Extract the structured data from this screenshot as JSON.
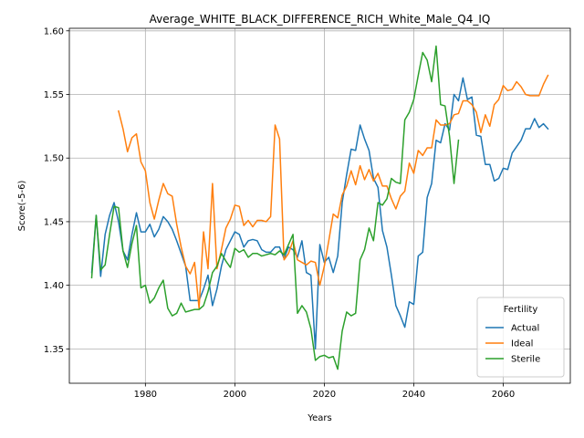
{
  "chart_data": {
    "type": "line",
    "title": "Average_WHITE_BLACK_DIFFERENCE_RICH_White_Male_Q4_IQ",
    "xlabel": "Years",
    "ylabel": "Score(-5-6)",
    "xlim": [
      1963,
      2075
    ],
    "ylim": [
      1.323,
      1.602
    ],
    "xticks": [
      1980,
      2000,
      2020,
      2040,
      2060
    ],
    "yticks": [
      1.35,
      1.4,
      1.45,
      1.5,
      1.55,
      1.6
    ],
    "ytick_labels": [
      "1.35",
      "1.40",
      "1.45",
      "1.50",
      "1.55",
      "1.60"
    ],
    "grid": true,
    "legend": {
      "title": "Fertility",
      "position": "lower-right"
    },
    "series": [
      {
        "name": "Actual",
        "color": "#1f77b4",
        "x": [
          1968,
          1969,
          1970,
          1971,
          1972,
          1973,
          1974,
          1975,
          1976,
          1977,
          1978,
          1979,
          1980,
          1981,
          1982,
          1983,
          1984,
          1985,
          1986,
          1987,
          1988,
          1989,
          1990,
          1991,
          1992,
          1993,
          1994,
          1995,
          1996,
          1997,
          1998,
          1999,
          2000,
          2001,
          2002,
          2003,
          2004,
          2005,
          2006,
          2007,
          2008,
          2009,
          2010,
          2011,
          2012,
          2013,
          2014,
          2015,
          2016,
          2017,
          2018,
          2019,
          2020,
          2021,
          2022,
          2023,
          2024,
          2025,
          2026,
          2027,
          2028,
          2029,
          2030,
          2031,
          2032,
          2033,
          2034,
          2035,
          2036,
          2037,
          2038,
          2039,
          2040,
          2041,
          2042,
          2043,
          2044,
          2045,
          2046,
          2047,
          2048,
          2049,
          2050,
          2051,
          2052,
          2053,
          2054,
          2055,
          2056,
          2057,
          2058,
          2059,
          2060,
          2061,
          2062,
          2063,
          2064,
          2065,
          2066,
          2067,
          2068,
          2069,
          2070
        ],
        "y": [
          1.41,
          1.455,
          1.407,
          1.44,
          1.455,
          1.465,
          1.45,
          1.427,
          1.42,
          1.44,
          1.457,
          1.442,
          1.442,
          1.448,
          1.438,
          1.444,
          1.454,
          1.45,
          1.444,
          1.435,
          1.425,
          1.415,
          1.388,
          1.388,
          1.388,
          1.397,
          1.408,
          1.384,
          1.397,
          1.415,
          1.428,
          1.435,
          1.442,
          1.44,
          1.43,
          1.435,
          1.436,
          1.435,
          1.428,
          1.426,
          1.426,
          1.43,
          1.43,
          1.421,
          1.43,
          1.428,
          1.422,
          1.435,
          1.41,
          1.408,
          1.35,
          1.432,
          1.418,
          1.422,
          1.41,
          1.423,
          1.465,
          1.487,
          1.507,
          1.506,
          1.526,
          1.515,
          1.506,
          1.484,
          1.477,
          1.443,
          1.43,
          1.408,
          1.384,
          1.376,
          1.367,
          1.387,
          1.385,
          1.423,
          1.426,
          1.469,
          1.48,
          1.514,
          1.512,
          1.527,
          1.522,
          1.55,
          1.545,
          1.563,
          1.546,
          1.548,
          1.518,
          1.517,
          1.495,
          1.495,
          1.482,
          1.484,
          1.492,
          1.491,
          1.504,
          1.509,
          1.514,
          1.523,
          1.523,
          1.531,
          1.524,
          1.527,
          1.523
        ]
      },
      {
        "name": "Ideal",
        "color": "#ff7f0e",
        "x": [
          1974,
          1975,
          1976,
          1977,
          1978,
          1979,
          1980,
          1981,
          1982,
          1983,
          1984,
          1985,
          1986,
          1987,
          1988,
          1989,
          1990,
          1991,
          1992,
          1993,
          1994,
          1995,
          1996,
          1997,
          1998,
          1999,
          2000,
          2001,
          2002,
          2003,
          2004,
          2005,
          2006,
          2007,
          2008,
          2009,
          2010,
          2011,
          2012,
          2013,
          2014,
          2015,
          2016,
          2017,
          2018,
          2019,
          2020,
          2021,
          2022,
          2023,
          2024,
          2025,
          2026,
          2027,
          2028,
          2029,
          2030,
          2031,
          2032,
          2033,
          2034,
          2035,
          2036,
          2037,
          2038,
          2039,
          2040,
          2041,
          2042,
          2043,
          2044,
          2045,
          2046,
          2047,
          2048,
          2049,
          2050,
          2051,
          2052,
          2053,
          2054,
          2055,
          2056,
          2057,
          2058,
          2059,
          2060,
          2061,
          2062,
          2063,
          2064,
          2065,
          2066,
          2067,
          2068,
          2069,
          2070
        ],
        "y": [
          1.537,
          1.523,
          1.505,
          1.516,
          1.519,
          1.497,
          1.49,
          1.465,
          1.452,
          1.467,
          1.48,
          1.472,
          1.47,
          1.448,
          1.43,
          1.415,
          1.409,
          1.418,
          1.382,
          1.442,
          1.413,
          1.48,
          1.413,
          1.428,
          1.445,
          1.452,
          1.463,
          1.462,
          1.447,
          1.451,
          1.446,
          1.451,
          1.451,
          1.45,
          1.454,
          1.526,
          1.515,
          1.42,
          1.425,
          1.435,
          1.42,
          1.418,
          1.416,
          1.419,
          1.418,
          1.4,
          1.415,
          1.435,
          1.456,
          1.453,
          1.471,
          1.478,
          1.49,
          1.479,
          1.494,
          1.483,
          1.491,
          1.482,
          1.488,
          1.478,
          1.478,
          1.468,
          1.46,
          1.47,
          1.474,
          1.496,
          1.488,
          1.506,
          1.502,
          1.508,
          1.508,
          1.53,
          1.526,
          1.526,
          1.527,
          1.534,
          1.535,
          1.545,
          1.545,
          1.542,
          1.536,
          1.52,
          1.534,
          1.525,
          1.542,
          1.546,
          1.557,
          1.553,
          1.554,
          1.56,
          1.556,
          1.55,
          1.549,
          1.549,
          1.549,
          1.558,
          1.565
        ]
      },
      {
        "name": "Sterile",
        "color": "#2ca02c",
        "x": [
          1968,
          1969,
          1970,
          1971,
          1972,
          1973,
          1974,
          1975,
          1976,
          1977,
          1978,
          1979,
          1980,
          1981,
          1982,
          1983,
          1984,
          1985,
          1986,
          1987,
          1988,
          1989,
          1990,
          1991,
          1992,
          1993,
          1994,
          1995,
          1996,
          1997,
          1998,
          1999,
          2000,
          2001,
          2002,
          2003,
          2004,
          2005,
          2006,
          2007,
          2008,
          2009,
          2010,
          2011,
          2012,
          2013,
          2014,
          2015,
          2016,
          2017,
          2018,
          2019,
          2020,
          2021,
          2022,
          2023,
          2024,
          2025,
          2026,
          2027,
          2028,
          2029,
          2030,
          2031,
          2032,
          2033,
          2034,
          2035,
          2036,
          2037,
          2038,
          2039,
          2040,
          2041,
          2042,
          2043,
          2044,
          2045,
          2046,
          2047,
          2048,
          2049,
          2050
        ],
        "y": [
          1.406,
          1.455,
          1.412,
          1.416,
          1.44,
          1.462,
          1.461,
          1.427,
          1.414,
          1.433,
          1.447,
          1.398,
          1.4,
          1.386,
          1.39,
          1.398,
          1.404,
          1.382,
          1.376,
          1.378,
          1.386,
          1.379,
          1.38,
          1.381,
          1.381,
          1.384,
          1.395,
          1.41,
          1.415,
          1.425,
          1.419,
          1.414,
          1.429,
          1.426,
          1.428,
          1.422,
          1.425,
          1.425,
          1.423,
          1.424,
          1.425,
          1.424,
          1.427,
          1.424,
          1.432,
          1.44,
          1.378,
          1.384,
          1.379,
          1.366,
          1.341,
          1.344,
          1.345,
          1.343,
          1.344,
          1.334,
          1.364,
          1.379,
          1.376,
          1.378,
          1.42,
          1.428,
          1.445,
          1.435,
          1.465,
          1.463,
          1.468,
          1.484,
          1.481,
          1.48,
          1.53,
          1.536,
          1.546,
          1.565,
          1.583,
          1.577,
          1.56,
          1.588,
          1.542,
          1.541,
          1.517,
          1.48,
          1.514
        ]
      }
    ]
  }
}
